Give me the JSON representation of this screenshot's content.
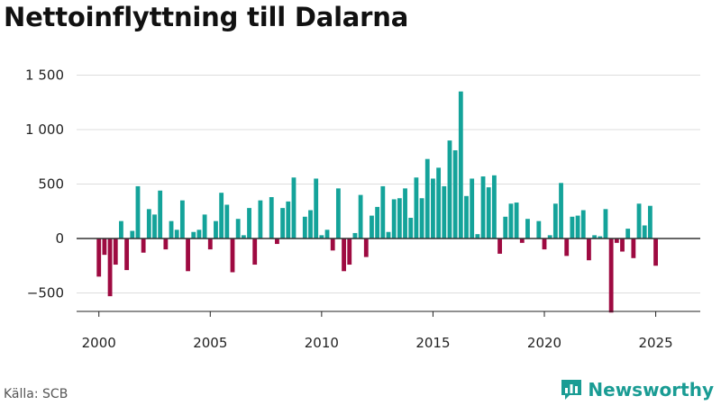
{
  "chart_data": {
    "type": "bar",
    "title": "Nettoinflyttning till Dalarna",
    "xlabel": "",
    "ylabel": "",
    "x_start": 2000.0,
    "x_step": 0.25,
    "xlim": [
      1999.0,
      2027.0
    ],
    "ylim": [
      -700,
      1500
    ],
    "y_ticks": [
      -500,
      0,
      500,
      1000,
      1500
    ],
    "y_tick_labels": [
      "−500",
      "0",
      "500",
      "1 000",
      "1 500"
    ],
    "x_ticks": [
      2000,
      2005,
      2010,
      2015,
      2020,
      2025
    ],
    "x_tick_labels": [
      "2000",
      "2005",
      "2010",
      "2015",
      "2020",
      "2025"
    ],
    "colors": {
      "positive": "#14a39a",
      "negative": "#9e0a41",
      "grid": "#dddddd",
      "zero": "#333333"
    },
    "values": [
      -350,
      -150,
      -530,
      -240,
      160,
      -290,
      70,
      480,
      -130,
      270,
      220,
      440,
      -100,
      160,
      80,
      350,
      -300,
      60,
      80,
      220,
      -100,
      160,
      420,
      310,
      -310,
      180,
      30,
      280,
      -240,
      350,
      0,
      380,
      -50,
      280,
      340,
      560,
      0,
      200,
      260,
      550,
      30,
      80,
      -110,
      460,
      -300,
      -240,
      50,
      400,
      -170,
      210,
      290,
      480,
      60,
      360,
      370,
      460,
      190,
      560,
      370,
      730,
      550,
      650,
      480,
      900,
      810,
      1350,
      390,
      550,
      40,
      570,
      470,
      580,
      -140,
      200,
      320,
      330,
      -40,
      180,
      0,
      160,
      -100,
      30,
      320,
      510,
      -160,
      200,
      210,
      260,
      -200,
      30,
      20,
      270,
      -680,
      -40,
      -120,
      90,
      -180,
      320,
      120,
      300,
      -250
    ]
  },
  "source": "Källa: SCB",
  "brand": {
    "name": "Newsworthy",
    "icon": "newsworthy-logo-icon"
  }
}
